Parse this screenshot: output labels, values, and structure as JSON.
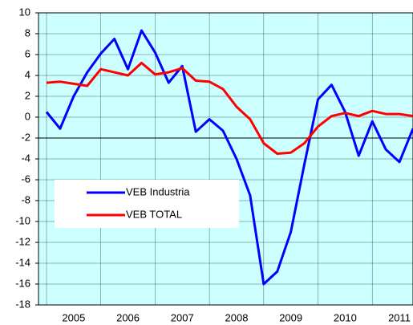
{
  "chart_data": {
    "type": "line",
    "categories": [
      null,
      null,
      "2005",
      null,
      null,
      null,
      "2006",
      null,
      null,
      null,
      "2007",
      null,
      null,
      null,
      "2008",
      null,
      null,
      null,
      "2009",
      null,
      null,
      null,
      "2010",
      null,
      null,
      null,
      "2011",
      null
    ],
    "series": [
      {
        "name": "VEB Industria",
        "color": "#0000ff",
        "values": [
          0.5,
          -1.1,
          2.0,
          4.3,
          6.1,
          7.5,
          4.6,
          8.3,
          6.2,
          3.3,
          4.9,
          -1.4,
          -0.2,
          -1.3,
          -4.0,
          -7.5,
          -16.0,
          -14.8,
          -11.0,
          -4.5,
          1.7,
          3.1,
          0.5,
          -3.7,
          -0.4,
          -3.1,
          -4.3,
          -1.1
        ]
      },
      {
        "name": "VEB TOTAL",
        "color": "#ff0000",
        "values": [
          3.3,
          3.4,
          3.2,
          3.0,
          4.6,
          4.3,
          4.0,
          5.2,
          4.1,
          4.3,
          4.7,
          3.5,
          3.4,
          2.7,
          1.0,
          -0.2,
          -2.5,
          -3.5,
          -3.4,
          -2.5,
          -0.9,
          0.1,
          0.4,
          0.1,
          0.6,
          0.3,
          0.3,
          0.1
        ]
      }
    ],
    "ylim": [
      -18,
      10
    ],
    "yticks": [
      -18,
      -16,
      -14,
      -12,
      -10,
      -8,
      -6,
      -4,
      -2,
      0,
      2,
      4,
      6,
      8,
      10
    ],
    "x_axis_crossing": -2,
    "grid": true,
    "background": "#ccffff"
  }
}
